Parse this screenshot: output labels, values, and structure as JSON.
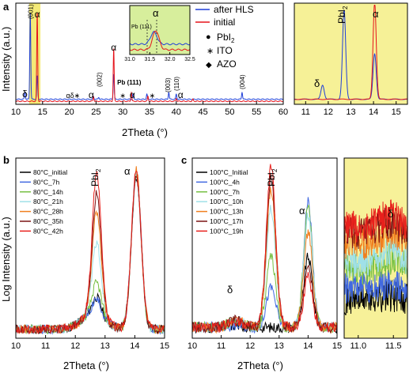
{
  "chart_data": [
    {
      "panel": "a",
      "type": "line",
      "xlabel": "2Theta (°)",
      "ylabel": "Intensity (a.u.)",
      "xlim": [
        10,
        60
      ],
      "xticks": [
        "10",
        "15",
        "20",
        "25",
        "30",
        "35",
        "40",
        "45",
        "50",
        "55",
        "60"
      ],
      "highlight_band_x": [
        12.5,
        14.6
      ],
      "highlight_color": "#f4ea77",
      "series": [
        {
          "name": "after HLS",
          "color": "#1f3fd8",
          "baseline": 0.05,
          "peaks": [
            [
              11.7,
              0.12
            ],
            [
              12.7,
              0.91
            ],
            [
              14.0,
              0.28
            ],
            [
              24.5,
              0.08
            ],
            [
              25.5,
              0.07
            ],
            [
              28.3,
              0.3
            ],
            [
              31.9,
              0.1
            ],
            [
              34.5,
              0.1
            ],
            [
              38.6,
              0.12
            ],
            [
              40.0,
              0.1
            ],
            [
              52.3,
              0.12
            ]
          ]
        },
        {
          "name": "initial",
          "color": "#e5131b",
          "baseline": 0.03,
          "peaks": [
            [
              14.0,
              0.91
            ],
            [
              24.5,
              0.08
            ],
            [
              28.3,
              0.55
            ],
            [
              31.6,
              0.12
            ],
            [
              34.7,
              0.08
            ],
            [
              40.0,
              0.06
            ],
            [
              43.1,
              0.05
            ]
          ]
        }
      ],
      "peak_labels": [
        {
          "text": "(001)",
          "x": 12.7
        },
        {
          "text": "α",
          "x": 14.0
        },
        {
          "text": "δ",
          "x": 11.7
        },
        {
          "text": "α",
          "x": 28.3
        },
        {
          "text": "αδ∗",
          "x": 20.7
        },
        {
          "text": "α",
          "x": 24.1
        },
        {
          "text": "(002)",
          "x": 25.6
        },
        {
          "text": "∗",
          "x": 30.0
        },
        {
          "text": "α",
          "x": 31.8
        },
        {
          "text": "Pb (111)",
          "x": 31.2
        },
        {
          "text": "∗",
          "x": 35.5
        },
        {
          "text": "(003)",
          "x": 38.4
        },
        {
          "text": "(110)",
          "x": 40.0
        },
        {
          "text": "α",
          "x": 40.8
        },
        {
          "text": "(004)",
          "x": 52.3
        }
      ],
      "legend": [
        {
          "label": "after HLS",
          "color": "#1f3fd8"
        },
        {
          "label": "initial",
          "color": "#e5131b"
        }
      ],
      "markers_legend": [
        {
          "symbol": "●",
          "label": "PbI2"
        },
        {
          "symbol": "∗",
          "label": "ITO"
        },
        {
          "symbol": "◆",
          "label": "AZO"
        }
      ]
    },
    {
      "panel": "a-inset",
      "type": "line",
      "xlim": [
        31.0,
        32.5
      ],
      "xticks": [
        "31.0",
        "31.5",
        "32.0",
        "32.5"
      ],
      "series": [
        {
          "name": "after HLS",
          "color": "#1f3fd8",
          "peaks": [
            [
              31.6,
              0.35
            ]
          ]
        },
        {
          "name": "initial",
          "color": "#e5131b",
          "peaks": [
            [
              31.65,
              0.55
            ]
          ]
        }
      ],
      "labels": [
        "Pb (111)",
        "α"
      ]
    },
    {
      "panel": "a-zoom",
      "type": "line",
      "xlim": [
        10.5,
        15.5
      ],
      "xticks": [
        "11",
        "12",
        "13",
        "14",
        "15"
      ],
      "series": [
        {
          "name": "after HLS",
          "color": "#1f3fd8",
          "peaks": [
            [
              11.75,
              0.14
            ],
            [
              12.7,
              0.88
            ],
            [
              14.05,
              0.45
            ]
          ]
        },
        {
          "name": "initial",
          "color": "#e5131b",
          "peaks": [
            [
              14.05,
              0.96
            ]
          ]
        }
      ],
      "labels": [
        "δ",
        "PbI2",
        "α"
      ]
    },
    {
      "panel": "b",
      "type": "line",
      "xlabel": "2Theta (°)",
      "ylabel": "Log Intensity (a.u.)",
      "xlim": [
        10,
        15
      ],
      "xticks": [
        "10",
        "11",
        "12",
        "13",
        "14",
        "15"
      ],
      "series": [
        {
          "name": "80°C_initial",
          "color": "#000000",
          "pbi2": 0.18,
          "alpha": 0.9
        },
        {
          "name": "80°C_7h",
          "color": "#4169e1",
          "pbi2": 0.17,
          "alpha": 0.92
        },
        {
          "name": "80°C_14h",
          "color": "#76c043",
          "pbi2": 0.26,
          "alpha": 0.9
        },
        {
          "name": "80°C_21h",
          "color": "#9fe0e8",
          "pbi2": 0.48,
          "alpha": 0.91
        },
        {
          "name": "80°C_28h",
          "color": "#f07f1f",
          "pbi2": 0.66,
          "alpha": 0.93
        },
        {
          "name": "80°C_35h",
          "color": "#7b1414",
          "pbi2": 0.76,
          "alpha": 0.91
        },
        {
          "name": "80°C_42h",
          "color": "#e8201c",
          "pbi2": 0.88,
          "alpha": 0.93
        }
      ],
      "labels": [
        "PbI2",
        "α"
      ]
    },
    {
      "panel": "c",
      "type": "line",
      "xlabel": "2Theta (°)",
      "xlim": [
        10,
        15
      ],
      "xticks": [
        "10",
        "11",
        "12",
        "13",
        "14",
        "15"
      ],
      "series": [
        {
          "name": "100°C_Initial",
          "color": "#000000",
          "pbi2": 0.06,
          "alpha": 0.44
        },
        {
          "name": "100°C_4h",
          "color": "#4169e1",
          "pbi2": 0.28,
          "alpha": 0.75
        },
        {
          "name": "100°C_7h",
          "color": "#76c043",
          "pbi2": 0.45,
          "alpha": 0.72
        },
        {
          "name": "100°C_10h",
          "color": "#9fe0e8",
          "pbi2": 0.72,
          "alpha": 0.68
        },
        {
          "name": "100°C_13h",
          "color": "#f07f1f",
          "pbi2": 0.82,
          "alpha": 0.58
        },
        {
          "name": "100°C_17h",
          "color": "#7b1414",
          "pbi2": 0.9,
          "alpha": 0.4
        },
        {
          "name": "100°C_19h",
          "color": "#e8201c",
          "pbi2": 0.95,
          "alpha": 0.33
        }
      ],
      "labels": [
        "PbI2",
        "α",
        "δ"
      ]
    },
    {
      "panel": "c-zoom",
      "type": "line",
      "xlim": [
        10.8,
        11.7
      ],
      "xticks": [
        "11.0",
        "11.5"
      ],
      "highlight_color": "#f7f199",
      "labels": [
        "δ"
      ]
    }
  ],
  "labels": {
    "panel_a": "a",
    "panel_b": "b",
    "panel_c": "c",
    "xlabel": "2Theta (°)",
    "ylabel_a": "Intensity (a.u.)",
    "ylabel_bc": "Log Intensity (a.u.)",
    "legend_a_1": "after HLS",
    "legend_a_2": "initial",
    "marker_pbi2": "PbI",
    "marker_pbi2_sub": "2",
    "marker_ito": "ITO",
    "marker_azo": "AZO",
    "alpha": "α",
    "delta": "δ",
    "pbi2": "PbI",
    "pbi2_sub": "2",
    "inset_pb": "Pb (111)"
  }
}
